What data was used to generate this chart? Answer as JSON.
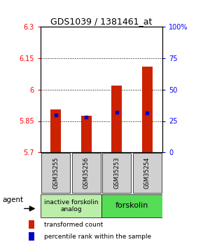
{
  "title": "GDS1039 / 1381461_at",
  "samples": [
    "GSM35255",
    "GSM35256",
    "GSM35253",
    "GSM35254"
  ],
  "bar_bottoms": [
    5.7,
    5.7,
    5.7,
    5.7
  ],
  "bar_tops": [
    5.905,
    5.875,
    6.02,
    6.11
  ],
  "blue_marks": [
    5.878,
    5.868,
    5.892,
    5.888
  ],
  "ylim_left": [
    5.7,
    6.3
  ],
  "ylim_right": [
    0,
    100
  ],
  "yticks_left": [
    5.7,
    5.85,
    6.0,
    6.15,
    6.3
  ],
  "ytick_labels_left": [
    "5.7",
    "5.85",
    "6",
    "6.15",
    "6.3"
  ],
  "yticks_right": [
    0,
    25,
    50,
    75,
    100
  ],
  "ytick_labels_right": [
    "0",
    "25",
    "50",
    "75",
    "100%"
  ],
  "hlines": [
    5.85,
    6.0,
    6.15
  ],
  "bar_color": "#cc2200",
  "blue_color": "#0000cc",
  "group1_label": "inactive forskolin\nanalog",
  "group2_label": "forskolin",
  "group1_color": "#bbeeaa",
  "group2_color": "#55dd55",
  "agent_label": "agent",
  "legend_red": "transformed count",
  "legend_blue": "percentile rank within the sample",
  "bar_width": 0.35,
  "title_fontsize": 9,
  "sample_label_fontsize": 6,
  "group_fontsize": 6.5
}
